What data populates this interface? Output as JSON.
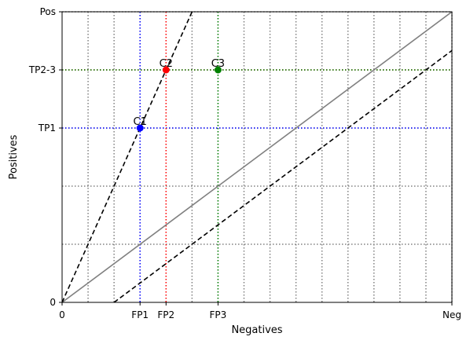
{
  "chart_data": {
    "type": "line",
    "xlabel": "Negatives",
    "ylabel": "Positives",
    "xlim": [
      0,
      15
    ],
    "ylim": [
      0,
      5
    ],
    "x_ticks": [
      {
        "value": 0,
        "label": "0"
      },
      {
        "value": 3,
        "label": "FP1"
      },
      {
        "value": 4,
        "label": "FP2"
      },
      {
        "value": 6,
        "label": "FP3"
      },
      {
        "value": 15,
        "label": "Neg"
      }
    ],
    "y_ticks": [
      {
        "value": 0,
        "label": "0"
      },
      {
        "value": 3,
        "label": "TP1"
      },
      {
        "value": 4,
        "label": "TP2-3"
      },
      {
        "value": 5,
        "label": "Pos"
      }
    ],
    "grid_x": [
      1,
      2,
      3,
      4,
      5,
      6,
      7,
      8,
      9,
      10,
      11,
      12,
      13,
      14,
      15
    ],
    "grid_y": [
      1,
      2,
      3,
      4,
      5
    ],
    "grid_color": "#808080",
    "guides": [
      {
        "x": 3,
        "y": 3,
        "color": "#0000ff"
      },
      {
        "x": 4,
        "y": 4,
        "color": "#ff0000"
      },
      {
        "x": 6,
        "y": 4,
        "color": "#008000"
      }
    ],
    "lines": [
      {
        "points": [
          [
            0,
            0
          ],
          [
            15,
            5
          ]
        ],
        "color": "#808080",
        "dash": false
      },
      {
        "points": [
          [
            0,
            0
          ],
          [
            5,
            5
          ]
        ],
        "color": "#000000",
        "dash": true
      },
      {
        "points": [
          [
            2,
            0
          ],
          [
            15,
            4.333
          ]
        ],
        "color": "#000000",
        "dash": true
      }
    ],
    "points": [
      {
        "label": "C1",
        "x": 3,
        "y": 3,
        "color": "#0000ff"
      },
      {
        "label": "C2",
        "x": 4,
        "y": 4,
        "color": "#ff0000"
      },
      {
        "label": "C3",
        "x": 6,
        "y": 4,
        "color": "#008000"
      }
    ]
  }
}
